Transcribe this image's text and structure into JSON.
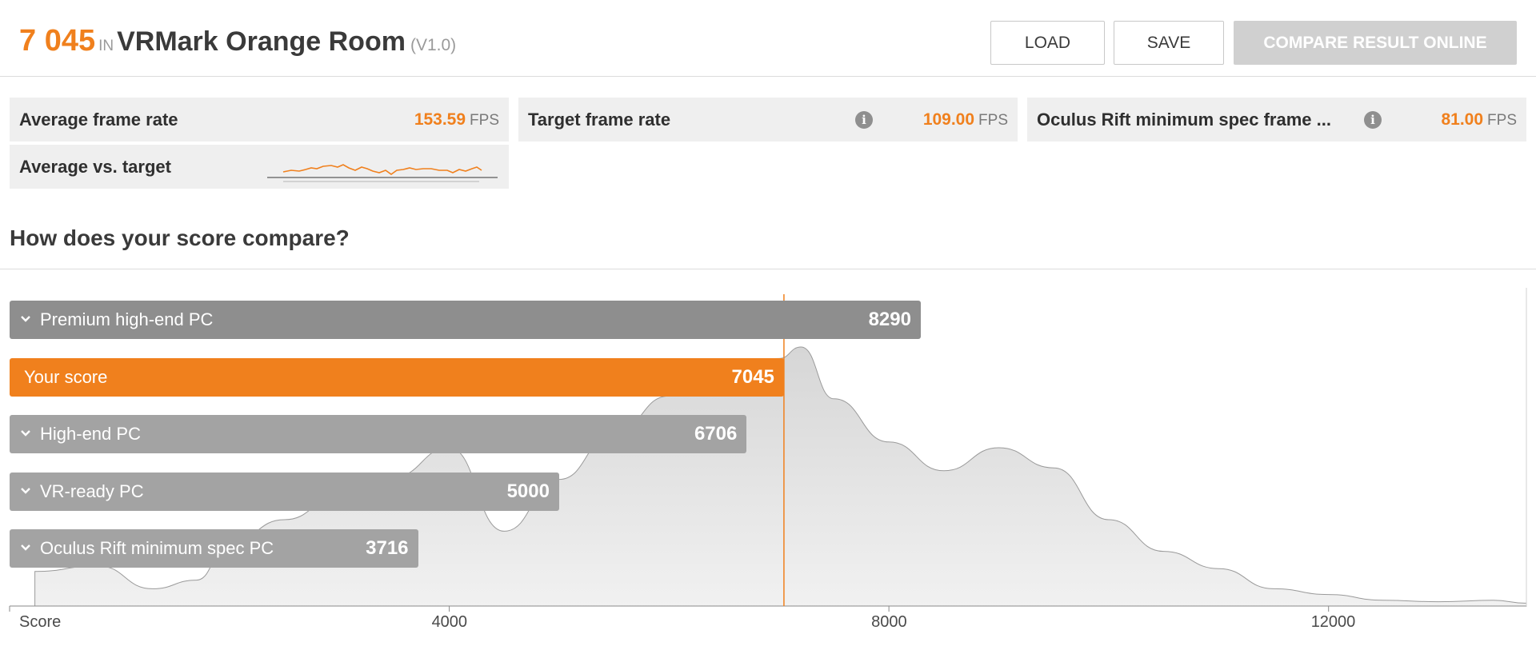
{
  "header": {
    "score": "7 045",
    "in_label": "IN",
    "benchmark": "VRMark Orange Room",
    "version": "(V1.0)",
    "load_label": "LOAD",
    "save_label": "SAVE",
    "compare_label": "COMPARE RESULT ONLINE"
  },
  "stats": {
    "avg_frame_rate": {
      "label": "Average frame rate",
      "value": "153.59",
      "unit": "FPS"
    },
    "target_frame_rate": {
      "label": "Target frame rate",
      "value": "109.00",
      "unit": "FPS"
    },
    "oculus_min_spec": {
      "label": "Oculus Rift minimum spec frame ...",
      "value": "81.00",
      "unit": "FPS"
    },
    "avg_vs_target": {
      "label": "Average vs. target"
    }
  },
  "compare": {
    "title": "How does your score compare?"
  },
  "chart_data": {
    "type": "bar",
    "orientation": "horizontal",
    "categories": [
      "Premium high-end PC",
      "Your score",
      "High-end PC",
      "VR-ready PC",
      "Oculus Rift minimum spec PC"
    ],
    "values": [
      8290,
      7045,
      6706,
      5000,
      3716
    ],
    "value_labels": [
      "8290",
      "7045",
      "6706",
      "5000",
      "3716"
    ],
    "highlight": "Your score",
    "xlabel": "Score",
    "xticks": [
      "4000",
      "8000",
      "12000"
    ],
    "xlim": [
      0,
      13800
    ],
    "marker_value": 7045,
    "distribution": {
      "x": [
        230,
        800,
        1300,
        1700,
        2000,
        2500,
        3000,
        3500,
        4000,
        4500,
        5000,
        5500,
        6000,
        6500,
        7000,
        7200,
        7500,
        8000,
        8500,
        9000,
        9500,
        10000,
        10500,
        11000,
        11500,
        12000,
        12500,
        13000,
        13500,
        13800
      ],
      "y": [
        0.12,
        0.14,
        0.06,
        0.09,
        0.22,
        0.3,
        0.38,
        0.45,
        0.55,
        0.26,
        0.44,
        0.6,
        0.73,
        0.84,
        0.86,
        0.9,
        0.72,
        0.57,
        0.47,
        0.55,
        0.48,
        0.3,
        0.19,
        0.13,
        0.06,
        0.04,
        0.02,
        0.015,
        0.02,
        0.01
      ]
    },
    "colors": {
      "your_score": "#f0801d",
      "other_bars": "#a3a3a3",
      "top_bar": "#8e8e8e",
      "distribution_fill": "#e4e4e4",
      "marker_line": "#f0801d"
    }
  },
  "icons": {
    "info": "info-icon",
    "expand": "chevron-down-icon"
  },
  "colors": {
    "accent": "#f0801d",
    "tile_bg": "#efefef",
    "disabled_button": "#d0d0d0"
  }
}
